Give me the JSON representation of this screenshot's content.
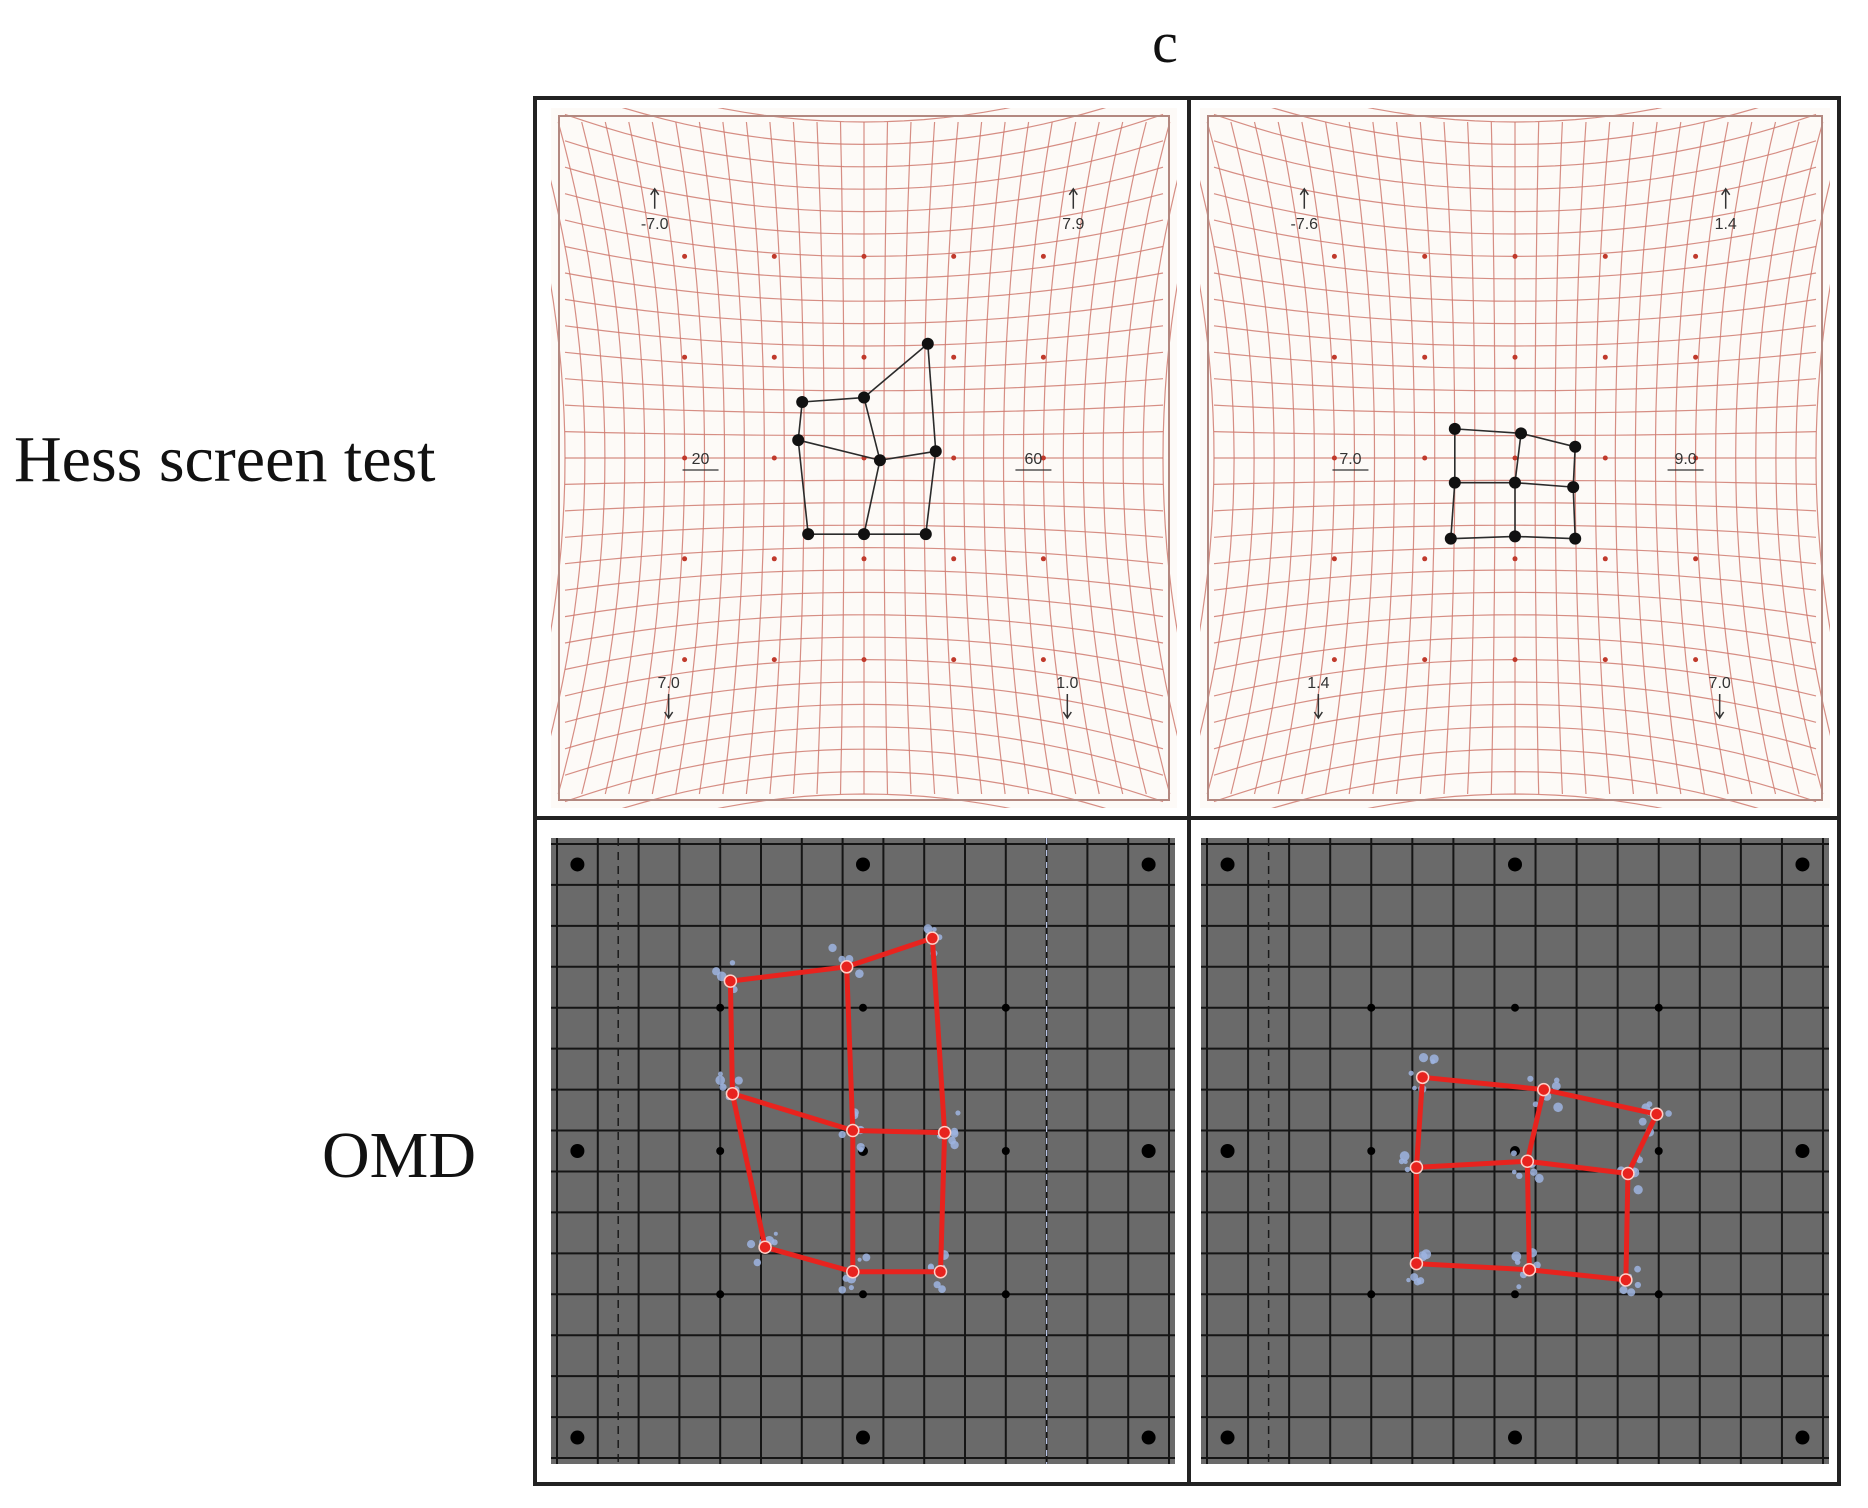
{
  "figure": {
    "panel_letter": "c",
    "row_labels": {
      "hess": "Hess screen test",
      "omd": "OMD"
    }
  },
  "hess": {
    "left": {
      "marks": {
        "tl": "-7.0",
        "tr": "7.9",
        "ml": "20",
        "mr": "60",
        "bl": "7.0",
        "br": "1.0"
      },
      "points": [
        [
          -3.1,
          2.5
        ],
        [
          0,
          2.7
        ],
        [
          3.2,
          5.1
        ],
        [
          -3.3,
          0.8
        ],
        [
          0.8,
          -0.1
        ],
        [
          3.6,
          0.3
        ],
        [
          -2.8,
          -3.4
        ],
        [
          0,
          -3.4
        ],
        [
          3.1,
          -3.4
        ]
      ]
    },
    "right": {
      "marks": {
        "tl": "-7.6",
        "tr": "1.4",
        "ml": "7.0",
        "mr": "9.0",
        "bl": "1.4",
        "br": "7.0"
      },
      "points": [
        [
          -3.0,
          1.3
        ],
        [
          0.3,
          1.1
        ],
        [
          3.0,
          0.5
        ],
        [
          -3.0,
          -1.1
        ],
        [
          0,
          -1.1
        ],
        [
          2.9,
          -1.3
        ],
        [
          -3.2,
          -3.6
        ],
        [
          0,
          -3.5
        ],
        [
          3.0,
          -3.6
        ]
      ]
    }
  },
  "omd": {
    "left": {
      "points": [
        [
          -6.5,
          8.3
        ],
        [
          -0.8,
          9.0
        ],
        [
          3.4,
          10.4
        ],
        [
          -6.4,
          2.8
        ],
        [
          -0.5,
          1.0
        ],
        [
          4.0,
          0.9
        ],
        [
          -4.8,
          -4.7
        ],
        [
          -0.5,
          -5.9
        ],
        [
          3.8,
          -5.9
        ]
      ]
    },
    "right": {
      "points": [
        [
          -4.5,
          3.6
        ],
        [
          1.4,
          3.0
        ],
        [
          6.9,
          1.8
        ],
        [
          -4.8,
          -0.8
        ],
        [
          0.6,
          -0.5
        ],
        [
          5.5,
          -1.1
        ],
        [
          -4.8,
          -5.5
        ],
        [
          0.7,
          -5.8
        ],
        [
          5.4,
          -6.3
        ]
      ]
    }
  },
  "colors": {
    "hess_grid": "#cf7a70",
    "omd_bg": "#6a6a6a",
    "omd_line": "#e8231e",
    "omd_scatter": "#9db4e0"
  }
}
